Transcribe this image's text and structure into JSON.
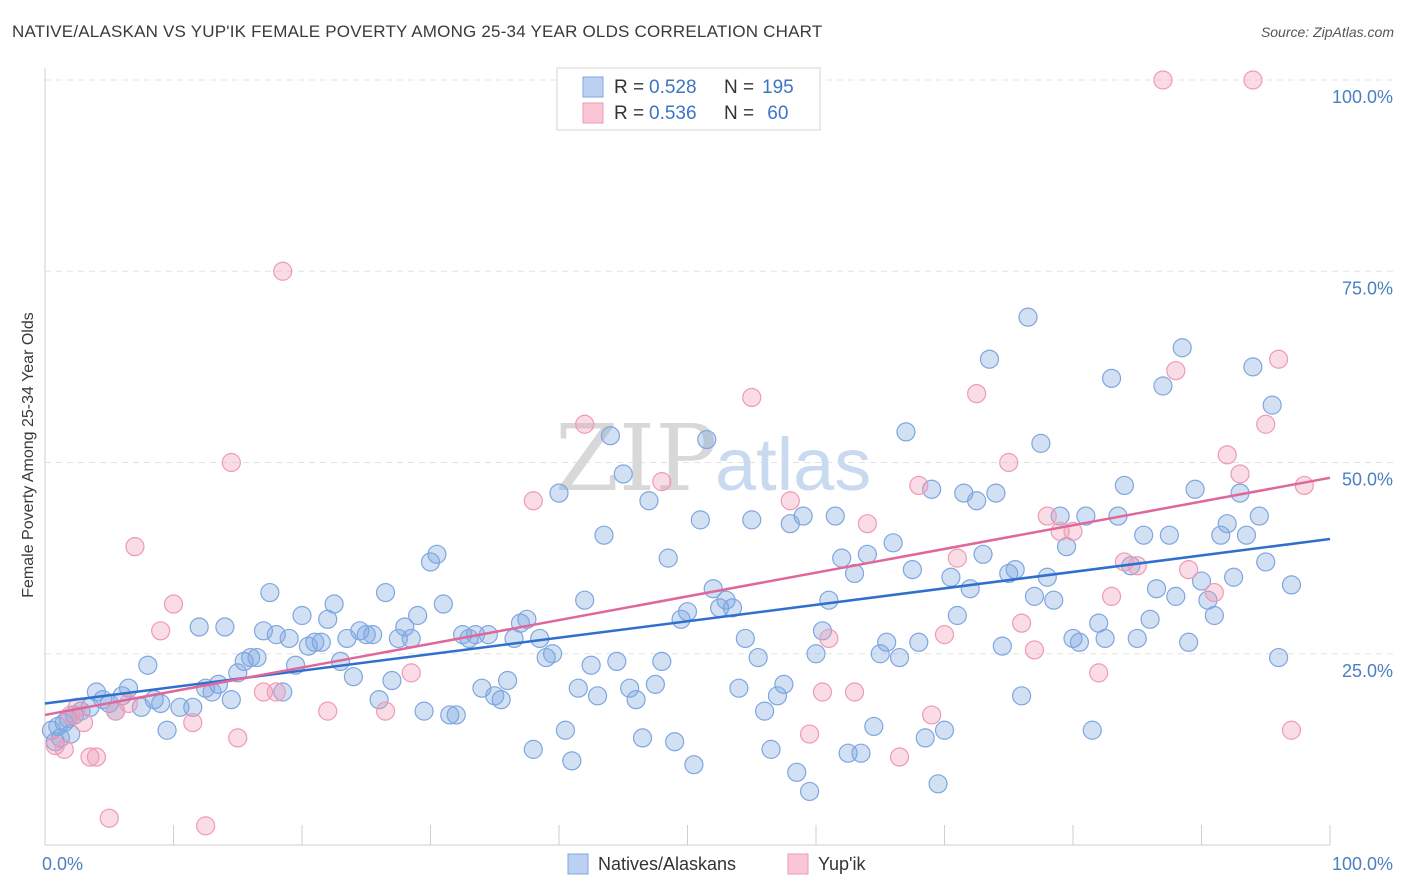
{
  "title": "NATIVE/ALASKAN VS YUP'IK FEMALE POVERTY AMONG 25-34 YEAR OLDS CORRELATION CHART",
  "source": "Source: ZipAtlas.com",
  "watermark": {
    "zip": "ZIP",
    "atlas": "atlas"
  },
  "legend_top": {
    "rows": [
      {
        "r_label": "R = ",
        "r_value": "0.528",
        "n_label": "N = ",
        "n_value": "195"
      },
      {
        "r_label": "R = ",
        "r_value": "0.536",
        "n_label": "N = ",
        "n_value": " 60"
      }
    ]
  },
  "chart_data": {
    "type": "scatter",
    "title": "NATIVE/ALASKAN VS YUP'IK FEMALE POVERTY AMONG 25-34 YEAR OLDS CORRELATION CHART",
    "xlabel": "",
    "ylabel": "Female Poverty Among 25-34 Year Olds",
    "xlim": [
      0,
      100
    ],
    "ylim": [
      0,
      100
    ],
    "x_tick_labels": [
      "0.0%",
      "100.0%"
    ],
    "y_tick_labels": [
      "25.0%",
      "50.0%",
      "75.0%",
      "100.0%"
    ],
    "y_ticks": [
      25,
      50,
      75,
      100
    ],
    "grid": true,
    "legend_position": "bottom-center",
    "colors": {
      "natives": "#7fa6e0",
      "yupik": "#ef9ab5",
      "natives_line": "#2f6fce",
      "yupik_line": "#e0679a"
    },
    "series": [
      {
        "name": "Natives/Alaskans",
        "r": 0.528,
        "n": 195,
        "trend": {
          "x": [
            0,
            100
          ],
          "y": [
            18.5,
            40
          ]
        },
        "points": [
          [
            0.5,
            15
          ],
          [
            0.8,
            13.5
          ],
          [
            1,
            15.5
          ],
          [
            1.2,
            14
          ],
          [
            1.5,
            16
          ],
          [
            1.8,
            16.5
          ],
          [
            2,
            14.5
          ],
          [
            2.3,
            17
          ],
          [
            2.8,
            17.5
          ],
          [
            3.5,
            18
          ],
          [
            4,
            20
          ],
          [
            4.5,
            19
          ],
          [
            5,
            18.5
          ],
          [
            5.5,
            17.5
          ],
          [
            6,
            19.5
          ],
          [
            6.5,
            20.5
          ],
          [
            7.5,
            18
          ],
          [
            8,
            23.5
          ],
          [
            8.5,
            19
          ],
          [
            9,
            18.5
          ],
          [
            9.5,
            15
          ],
          [
            10.5,
            18
          ],
          [
            11.5,
            18
          ],
          [
            12,
            28.5
          ],
          [
            12.5,
            20.5
          ],
          [
            13,
            20
          ],
          [
            13.5,
            21
          ],
          [
            14,
            28.5
          ],
          [
            14.5,
            19
          ],
          [
            15,
            22.5
          ],
          [
            15.5,
            24
          ],
          [
            16,
            24.5
          ],
          [
            16.5,
            24.5
          ],
          [
            17,
            28
          ],
          [
            17.5,
            33
          ],
          [
            18,
            27.5
          ],
          [
            18.5,
            20
          ],
          [
            19,
            27
          ],
          [
            19.5,
            23.5
          ],
          [
            20,
            30
          ],
          [
            20.5,
            26
          ],
          [
            21,
            26.5
          ],
          [
            21.5,
            26.5
          ],
          [
            22,
            29.5
          ],
          [
            22.5,
            31.5
          ],
          [
            23,
            24
          ],
          [
            23.5,
            27
          ],
          [
            24,
            22
          ],
          [
            24.5,
            28
          ],
          [
            25,
            27.5
          ],
          [
            25.5,
            27.5
          ],
          [
            26,
            19
          ],
          [
            26.5,
            33
          ],
          [
            27,
            21.5
          ],
          [
            27.5,
            27
          ],
          [
            28,
            28.5
          ],
          [
            28.5,
            27
          ],
          [
            29,
            30
          ],
          [
            29.5,
            17.5
          ],
          [
            30,
            37
          ],
          [
            30.5,
            38
          ],
          [
            31,
            31.5
          ],
          [
            31.5,
            17
          ],
          [
            32,
            17
          ],
          [
            32.5,
            27.5
          ],
          [
            33,
            27
          ],
          [
            33.5,
            27.5
          ],
          [
            34,
            20.5
          ],
          [
            34.5,
            27.5
          ],
          [
            35,
            19.5
          ],
          [
            35.5,
            19
          ],
          [
            36,
            21.5
          ],
          [
            36.5,
            27
          ],
          [
            37,
            29
          ],
          [
            37.5,
            29.5
          ],
          [
            38,
            12.5
          ],
          [
            38.5,
            27
          ],
          [
            39,
            24.5
          ],
          [
            39.5,
            25
          ],
          [
            40,
            46
          ],
          [
            40.5,
            15
          ],
          [
            41,
            11
          ],
          [
            41.5,
            20.5
          ],
          [
            42,
            32
          ],
          [
            42.5,
            23.5
          ],
          [
            43,
            19.5
          ],
          [
            43.5,
            40.5
          ],
          [
            44,
            53.5
          ],
          [
            44.5,
            24
          ],
          [
            45,
            48.5
          ],
          [
            45.5,
            20.5
          ],
          [
            46,
            19
          ],
          [
            46.5,
            14
          ],
          [
            47,
            45
          ],
          [
            47.5,
            21
          ],
          [
            48,
            24
          ],
          [
            48.5,
            37.5
          ],
          [
            49,
            13.5
          ],
          [
            49.5,
            29.5
          ],
          [
            50,
            30.5
          ],
          [
            50.5,
            10.5
          ],
          [
            51,
            42.5
          ],
          [
            51.5,
            53
          ],
          [
            52,
            33.5
          ],
          [
            52.5,
            31
          ],
          [
            53,
            32
          ],
          [
            53.5,
            31
          ],
          [
            54,
            20.5
          ],
          [
            54.5,
            27
          ],
          [
            55,
            42.5
          ],
          [
            55.5,
            24.5
          ],
          [
            56,
            17.5
          ],
          [
            56.5,
            12.5
          ],
          [
            57,
            19.5
          ],
          [
            57.5,
            21
          ],
          [
            58,
            42
          ],
          [
            58.5,
            9.5
          ],
          [
            59,
            43
          ],
          [
            59.5,
            7
          ],
          [
            60,
            25
          ],
          [
            60.5,
            28
          ],
          [
            61,
            32
          ],
          [
            61.5,
            43
          ],
          [
            62,
            37.5
          ],
          [
            62.5,
            12
          ],
          [
            63,
            35.5
          ],
          [
            63.5,
            12
          ],
          [
            64,
            38
          ],
          [
            64.5,
            15.5
          ],
          [
            65,
            25
          ],
          [
            65.5,
            26.5
          ],
          [
            66,
            39.5
          ],
          [
            66.5,
            24.5
          ],
          [
            67,
            54
          ],
          [
            67.5,
            36
          ],
          [
            68,
            26.5
          ],
          [
            68.5,
            14
          ],
          [
            69,
            46.5
          ],
          [
            69.5,
            8
          ],
          [
            70,
            15
          ],
          [
            70.5,
            35
          ],
          [
            71,
            30
          ],
          [
            71.5,
            46
          ],
          [
            72,
            33.5
          ],
          [
            72.5,
            45
          ],
          [
            73,
            38
          ],
          [
            73.5,
            63.5
          ],
          [
            74,
            46
          ],
          [
            74.5,
            26
          ],
          [
            75,
            35.5
          ],
          [
            75.5,
            36
          ],
          [
            76,
            19.5
          ],
          [
            76.5,
            69
          ],
          [
            77,
            32.5
          ],
          [
            77.5,
            52.5
          ],
          [
            78,
            35
          ],
          [
            78.5,
            32
          ],
          [
            79,
            43
          ],
          [
            79.5,
            39
          ],
          [
            80,
            27
          ],
          [
            80.5,
            26.5
          ],
          [
            81,
            43
          ],
          [
            81.5,
            15
          ],
          [
            82,
            29
          ],
          [
            82.5,
            27
          ],
          [
            83,
            61
          ],
          [
            83.5,
            43
          ],
          [
            84,
            47
          ],
          [
            84.5,
            36.5
          ],
          [
            85,
            27
          ],
          [
            85.5,
            40.5
          ],
          [
            86,
            29.5
          ],
          [
            86.5,
            33.5
          ],
          [
            87,
            60
          ],
          [
            87.5,
            40.5
          ],
          [
            88,
            32.5
          ],
          [
            88.5,
            65
          ],
          [
            89,
            26.5
          ],
          [
            89.5,
            46.5
          ],
          [
            90,
            34.5
          ],
          [
            90.5,
            32
          ],
          [
            91,
            30
          ],
          [
            91.5,
            40.5
          ],
          [
            92,
            42
          ],
          [
            92.5,
            35
          ],
          [
            93,
            46
          ],
          [
            93.5,
            40.5
          ],
          [
            94,
            62.5
          ],
          [
            94.5,
            43
          ],
          [
            95,
            37
          ],
          [
            95.5,
            57.5
          ],
          [
            96,
            24.5
          ],
          [
            97,
            34
          ]
        ]
      },
      {
        "name": "Yup'ik",
        "r": 0.536,
        "n": 60,
        "trend": {
          "x": [
            0,
            100
          ],
          "y": [
            17,
            48
          ]
        },
        "points": [
          [
            0.8,
            13
          ],
          [
            1.5,
            12.5
          ],
          [
            2,
            17
          ],
          [
            2.5,
            18
          ],
          [
            3,
            16
          ],
          [
            3.5,
            11.5
          ],
          [
            4,
            11.5
          ],
          [
            5,
            3.5
          ],
          [
            5.5,
            17.5
          ],
          [
            6.5,
            18.5
          ],
          [
            7,
            39
          ],
          [
            9,
            28
          ],
          [
            10,
            31.5
          ],
          [
            11.5,
            16
          ],
          [
            12.5,
            2.5
          ],
          [
            14.5,
            50
          ],
          [
            15,
            14
          ],
          [
            17,
            20
          ],
          [
            18,
            20
          ],
          [
            18.5,
            75
          ],
          [
            22,
            17.5
          ],
          [
            26.5,
            17.5
          ],
          [
            28.5,
            22.5
          ],
          [
            38,
            45
          ],
          [
            42,
            55
          ],
          [
            48,
            47.5
          ],
          [
            55,
            58.5
          ],
          [
            58,
            45
          ],
          [
            59.5,
            14.5
          ],
          [
            60.5,
            20
          ],
          [
            61,
            27
          ],
          [
            63,
            20
          ],
          [
            64,
            42
          ],
          [
            66.5,
            11.5
          ],
          [
            68,
            47
          ],
          [
            69,
            17
          ],
          [
            70,
            27.5
          ],
          [
            71,
            37.5
          ],
          [
            72.5,
            59
          ],
          [
            75,
            50
          ],
          [
            76,
            29
          ],
          [
            77,
            25.5
          ],
          [
            78,
            43
          ],
          [
            79,
            41
          ],
          [
            80,
            41
          ],
          [
            82,
            22.5
          ],
          [
            83,
            32.5
          ],
          [
            84,
            37
          ],
          [
            85,
            36.5
          ],
          [
            87,
            100
          ],
          [
            88,
            62
          ],
          [
            89,
            36
          ],
          [
            91,
            33
          ],
          [
            92,
            51
          ],
          [
            93,
            48.5
          ],
          [
            94,
            100
          ],
          [
            95,
            55
          ],
          [
            96,
            63.5
          ],
          [
            97,
            15
          ],
          [
            98,
            47
          ]
        ]
      }
    ]
  }
}
